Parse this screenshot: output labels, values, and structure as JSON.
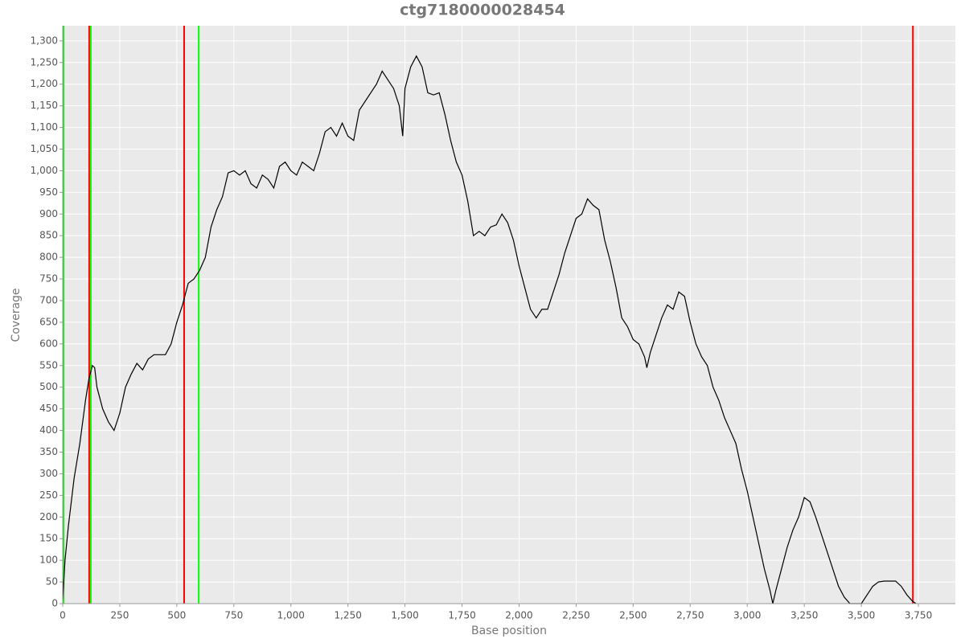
{
  "chart_data": {
    "type": "line",
    "title": "ctg7180000028454",
    "xlabel": "Base position",
    "ylabel": "Coverage",
    "x": [
      0,
      10,
      25,
      50,
      75,
      100,
      115,
      130,
      140,
      150,
      175,
      200,
      225,
      250,
      275,
      300,
      325,
      350,
      375,
      400,
      450,
      475,
      500,
      525,
      550,
      575,
      600,
      625,
      650,
      675,
      700,
      725,
      750,
      775,
      800,
      825,
      850,
      875,
      900,
      925,
      950,
      975,
      1000,
      1025,
      1050,
      1075,
      1100,
      1125,
      1150,
      1175,
      1200,
      1225,
      1250,
      1275,
      1300,
      1325,
      1350,
      1375,
      1400,
      1425,
      1450,
      1475,
      1490,
      1500,
      1525,
      1550,
      1575,
      1600,
      1625,
      1650,
      1675,
      1700,
      1725,
      1750,
      1775,
      1800,
      1825,
      1850,
      1875,
      1900,
      1925,
      1950,
      1975,
      2000,
      2025,
      2050,
      2075,
      2100,
      2125,
      2150,
      2175,
      2200,
      2225,
      2250,
      2275,
      2300,
      2325,
      2350,
      2375,
      2400,
      2425,
      2450,
      2475,
      2500,
      2525,
      2550,
      2560,
      2575,
      2600,
      2625,
      2650,
      2675,
      2700,
      2725,
      2750,
      2775,
      2800,
      2825,
      2850,
      2875,
      2900,
      2925,
      2950,
      2975,
      3000,
      3025,
      3050,
      3075,
      3100,
      3112,
      3125,
      3150,
      3175,
      3200,
      3225,
      3250,
      3275,
      3300,
      3325,
      3350,
      3375,
      3400,
      3425,
      3450,
      3500,
      3525,
      3550,
      3575,
      3600,
      3650,
      3675,
      3700,
      3725,
      3740
    ],
    "series": [
      {
        "color": "#000000",
        "values": [
          10,
          100,
          180,
          290,
          370,
          470,
          520,
          550,
          545,
          500,
          450,
          420,
          400,
          440,
          500,
          530,
          555,
          540,
          565,
          575,
          575,
          600,
          650,
          690,
          740,
          750,
          770,
          800,
          870,
          910,
          940,
          995,
          1000,
          990,
          1000,
          970,
          960,
          990,
          980,
          960,
          1010,
          1020,
          1000,
          990,
          1020,
          1010,
          1000,
          1040,
          1090,
          1100,
          1080,
          1110,
          1080,
          1070,
          1140,
          1160,
          1180,
          1200,
          1230,
          1210,
          1190,
          1150,
          1080,
          1190,
          1240,
          1265,
          1240,
          1180,
          1175,
          1180,
          1130,
          1070,
          1020,
          990,
          930,
          850,
          860,
          850,
          870,
          875,
          900,
          880,
          840,
          780,
          730,
          680,
          660,
          680,
          680,
          720,
          760,
          810,
          850,
          890,
          900,
          935,
          920,
          910,
          840,
          790,
          730,
          660,
          640,
          610,
          600,
          570,
          545,
          580,
          620,
          660,
          690,
          680,
          720,
          710,
          650,
          600,
          570,
          550,
          500,
          470,
          430,
          400,
          370,
          310,
          260,
          200,
          140,
          80,
          30,
          0,
          30,
          80,
          130,
          170,
          200,
          245,
          235,
          200,
          160,
          120,
          80,
          40,
          15,
          0,
          0,
          20,
          40,
          50,
          52,
          52,
          40,
          20,
          5,
          0
        ]
      }
    ],
    "vlines": [
      {
        "x": 4,
        "color": "#00ff00"
      },
      {
        "x": 116,
        "color": "#ff0000"
      },
      {
        "x": 123,
        "color": "#00ff00"
      },
      {
        "x": 532,
        "color": "#ff0000"
      },
      {
        "x": 596,
        "color": "#00ff00"
      },
      {
        "x": 3726,
        "color": "#ff0000"
      }
    ],
    "xlim": [
      0,
      3912
    ],
    "ylim": [
      0,
      1335
    ],
    "xticks": [
      0,
      250,
      500,
      750,
      {
        "value": 1000,
        "label": "1,000"
      },
      {
        "value": 1250,
        "label": "1,250"
      },
      {
        "value": 1500,
        "label": "1,500"
      },
      {
        "value": 1750,
        "label": "1,750"
      },
      {
        "value": 2000,
        "label": "2,000"
      },
      {
        "value": 2250,
        "label": "2,250"
      },
      {
        "value": 2500,
        "label": "2,500"
      },
      {
        "value": 2750,
        "label": "2,750"
      },
      {
        "value": 3000,
        "label": "3,000"
      },
      {
        "value": 3250,
        "label": "3,250"
      },
      {
        "value": 3500,
        "label": "3,500"
      },
      {
        "value": 3750,
        "label": "3,750"
      }
    ],
    "yticks": [
      0,
      50,
      100,
      150,
      200,
      250,
      300,
      350,
      400,
      450,
      500,
      550,
      600,
      650,
      700,
      750,
      800,
      850,
      900,
      950,
      {
        "value": 1000,
        "label": "1,000"
      },
      {
        "value": 1050,
        "label": "1,050"
      },
      {
        "value": 1100,
        "label": "1,100"
      },
      {
        "value": 1150,
        "label": "1,150"
      },
      {
        "value": 1200,
        "label": "1,200"
      },
      {
        "value": 1250,
        "label": "1,250"
      },
      {
        "value": 1300,
        "label": "1,300"
      }
    ],
    "grid": true
  }
}
